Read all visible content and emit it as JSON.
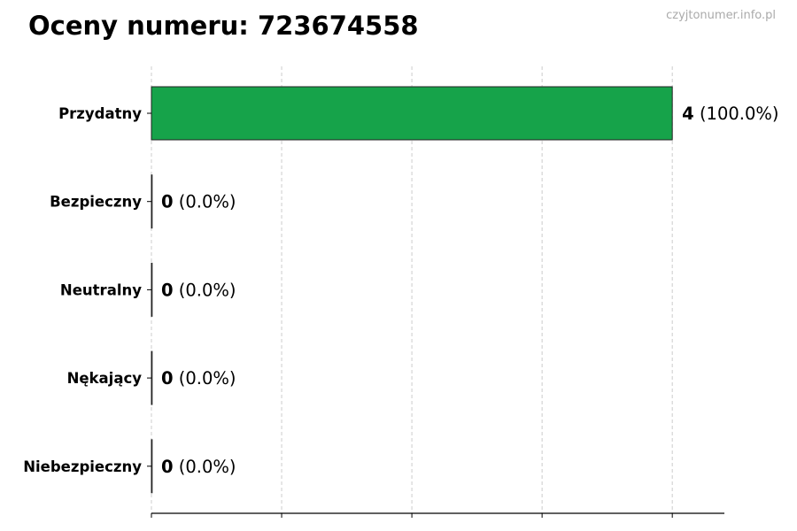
{
  "title": "Oceny numeru: 723674558",
  "watermark": "czyjtonumer.info.pl",
  "chart_data": {
    "type": "bar",
    "orientation": "horizontal",
    "title": "Oceny numeru: 723674558",
    "categories": [
      "Przydatny",
      "Bezpieczny",
      "Neutralny",
      "Nękający",
      "Niebezpieczny"
    ],
    "values": [
      4,
      0,
      0,
      0,
      0
    ],
    "labels": [
      {
        "count": "4",
        "pct": "(100.0%)"
      },
      {
        "count": "0",
        "pct": "(0.0%)"
      },
      {
        "count": "0",
        "pct": "(0.0%)"
      },
      {
        "count": "0",
        "pct": "(0.0%)"
      },
      {
        "count": "0",
        "pct": "(0.0%)"
      }
    ],
    "colors": [
      "#16a34a",
      "#16a34a",
      "#16a34a",
      "#16a34a",
      "#16a34a"
    ],
    "xlim": [
      0,
      4.4
    ],
    "xticks": [
      0,
      1,
      2,
      3,
      4
    ],
    "xtick_labels_shown": false,
    "grid": "vertical dashed",
    "xlabel": "",
    "ylabel": ""
  }
}
